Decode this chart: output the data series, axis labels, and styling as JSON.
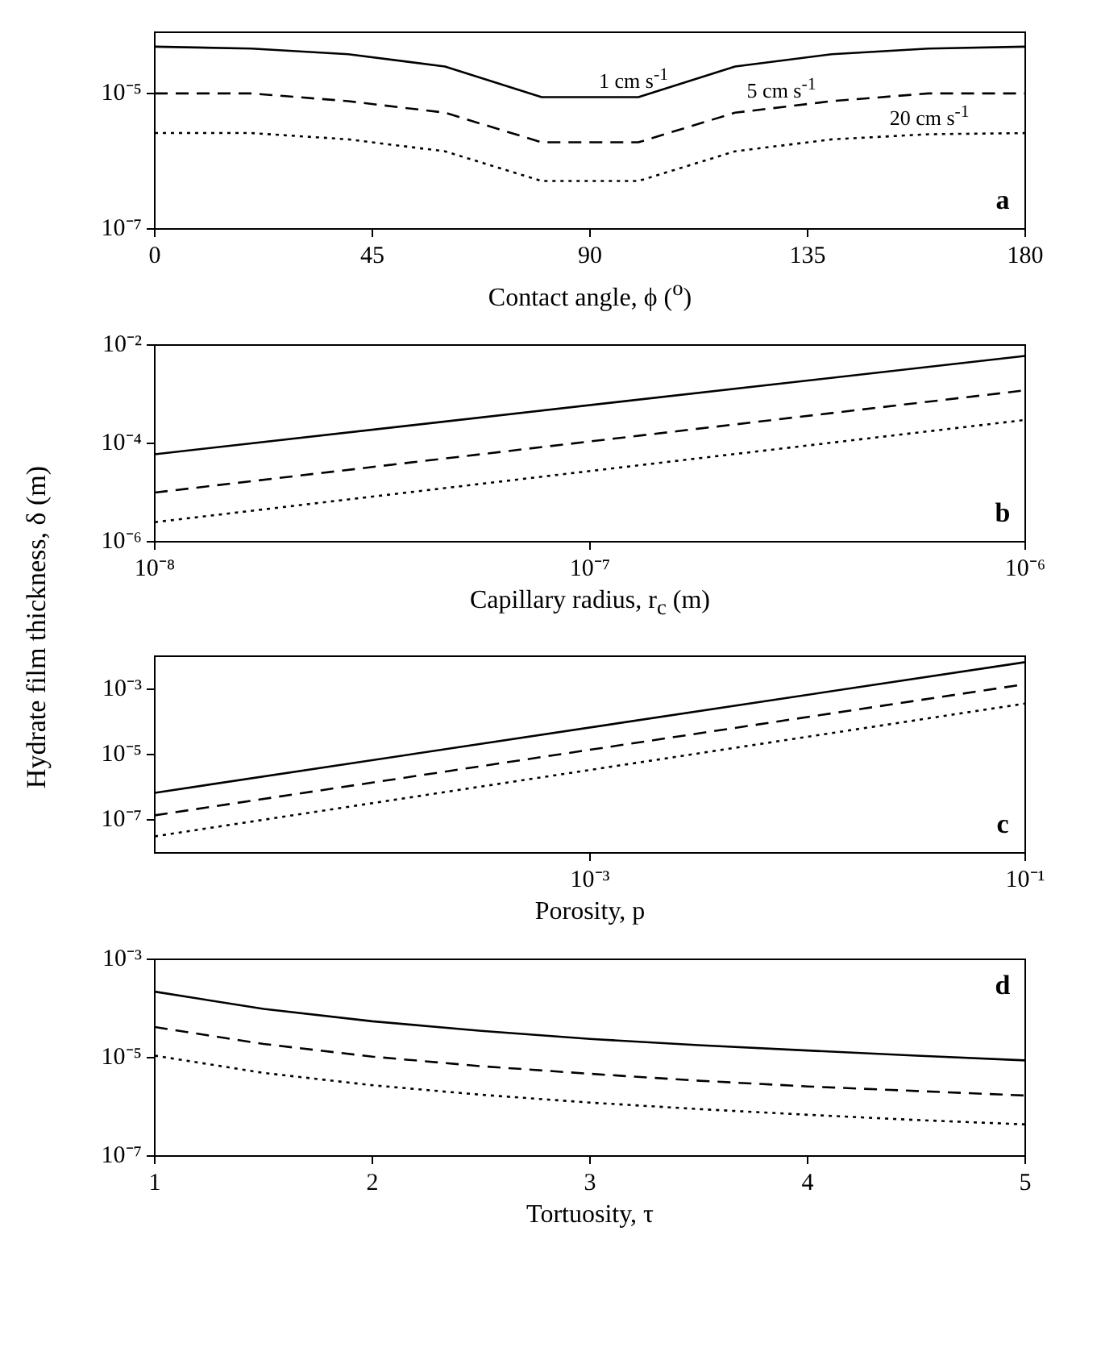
{
  "chart_data": [
    {
      "type": "line",
      "xlabel": "Contact angle, ϕ ($^{o}$)",
      "log": "y",
      "marker": "none",
      "x": [
        0,
        20,
        40,
        60,
        80,
        100,
        120,
        140,
        160,
        180
      ],
      "series": [
        {
          "name": "1 cm s$^{-1}$",
          "color": "#000000",
          "line_style": "solid",
          "values": [
            4.9e-05,
            4.6e-05,
            3.8e-05,
            2.5e-05,
            8.8e-06,
            8.8e-06,
            2.5e-05,
            3.8e-05,
            4.6e-05,
            4.9e-05
          ]
        },
        {
          "name": "5 cm s$^{-1}$",
          "color": "#000000",
          "line_style": "dashed",
          "values": [
            1e-05,
            1e-05,
            7.7e-06,
            5.2e-06,
            1.9e-06,
            1.9e-06,
            5.2e-06,
            7.7e-06,
            1e-05,
            1e-05
          ]
        },
        {
          "name": "20 cm s$^{-1}$",
          "color": "#000000",
          "line_style": "dotted",
          "values": [
            2.6e-06,
            2.6e-06,
            2.1e-06,
            1.4e-06,
            5.1e-07,
            5.1e-07,
            1.4e-06,
            2.1e-06,
            2.5e-06,
            2.6e-06
          ]
        }
      ],
      "xlim": [
        0,
        180
      ],
      "xticks": [
        0,
        45,
        90,
        135,
        180
      ],
      "ylim": [
        1e-07,
        8e-05
      ],
      "yticks": [
        {
          "value": 1e-07,
          "label": "10⁻⁷"
        },
        {
          "value": 1e-05,
          "label": "10⁻⁵"
        }
      ],
      "annotations": [
        "a"
      ]
    },
    {
      "type": "line",
      "xlabel": "Capillary radius, r$_{c}$ (m)",
      "ylabel": "Hydrate film thickness, δ (m)",
      "log": "xy",
      "marker": "none",
      "x": [
        1e-08,
        1e-06
      ],
      "series": [
        {
          "color": "#000000",
          "line_style": "solid",
          "values": [
            6e-05,
            0.006
          ]
        },
        {
          "color": "#000000",
          "line_style": "dashed",
          "values": [
            1e-05,
            0.0012
          ]
        },
        {
          "color": "#000000",
          "line_style": "dotted",
          "values": [
            2.5e-06,
            0.0003
          ]
        }
      ],
      "xlim": [
        1e-08,
        1e-06
      ],
      "xticks": [
        {
          "value": 1e-08,
          "label": "10⁻⁸"
        },
        {
          "value": 1e-07,
          "label": "10⁻⁷"
        },
        {
          "value": 1e-06,
          "label": "10⁻⁶"
        }
      ],
      "ylim": [
        1e-06,
        0.01
      ],
      "yticks": [
        {
          "value": 1e-06,
          "label": "10⁻⁶"
        },
        {
          "value": 0.0001,
          "label": "10⁻⁴"
        },
        {
          "value": 0.01,
          "label": "10⁻²"
        }
      ],
      "annotations": [
        "b"
      ]
    },
    {
      "type": "line",
      "xlabel": "Porosity,  p",
      "log": "xy",
      "marker": "none",
      "x": [
        1e-05,
        0.1
      ],
      "series": [
        {
          "color": "#000000",
          "line_style": "solid",
          "values": [
            6.8e-07,
            0.0066
          ]
        },
        {
          "color": "#000000",
          "line_style": "dashed",
          "values": [
            1.4e-07,
            0.0014
          ]
        },
        {
          "color": "#000000",
          "line_style": "dotted",
          "values": [
            3.2e-08,
            0.00036
          ]
        }
      ],
      "xlim": [
        1e-05,
        0.1
      ],
      "xticks": [
        {
          "value": 0.001,
          "label": "10⁻³"
        },
        {
          "value": 0.1,
          "label": "10⁻¹"
        }
      ],
      "ylim": [
        1e-08,
        0.01
      ],
      "yticks": [
        {
          "value": 1e-07,
          "label": "10⁻⁷"
        },
        {
          "value": 1e-05,
          "label": "10⁻⁵"
        },
        {
          "value": 0.001,
          "label": "10⁻³"
        }
      ],
      "annotations": [
        "c"
      ]
    },
    {
      "type": "line",
      "xlabel": "Tortuosity,  τ",
      "log": "y",
      "marker": "none",
      "x": [
        1,
        1.5,
        2,
        2.5,
        3,
        3.5,
        4,
        4.5,
        5
      ],
      "series": [
        {
          "color": "#000000",
          "line_style": "solid",
          "values": [
            0.00022,
            9.8e-05,
            5.5e-05,
            3.5e-05,
            2.4e-05,
            1.8e-05,
            1.4e-05,
            1.1e-05,
            8.8e-06
          ]
        },
        {
          "color": "#000000",
          "line_style": "dashed",
          "values": [
            4.2e-05,
            1.9e-05,
            1.05e-05,
            6.7e-06,
            4.7e-06,
            3.4e-06,
            2.6e-06,
            2.1e-06,
            1.7e-06
          ]
        },
        {
          "color": "#000000",
          "line_style": "dotted",
          "values": [
            1.1e-05,
            4.9e-06,
            2.75e-06,
            1.76e-06,
            1.22e-06,
            9e-07,
            6.9e-07,
            5.4e-07,
            4.4e-07
          ]
        }
      ],
      "xlim": [
        1,
        5
      ],
      "xticks": [
        1,
        2,
        3,
        4,
        5
      ],
      "ylim": [
        1e-07,
        0.001
      ],
      "yticks": [
        {
          "value": 1e-07,
          "label": "10⁻⁷"
        },
        {
          "value": 1e-05,
          "label": "10⁻⁵"
        },
        {
          "value": 0.001,
          "label": "10⁻³"
        }
      ],
      "annotations": [
        "d"
      ]
    }
  ]
}
